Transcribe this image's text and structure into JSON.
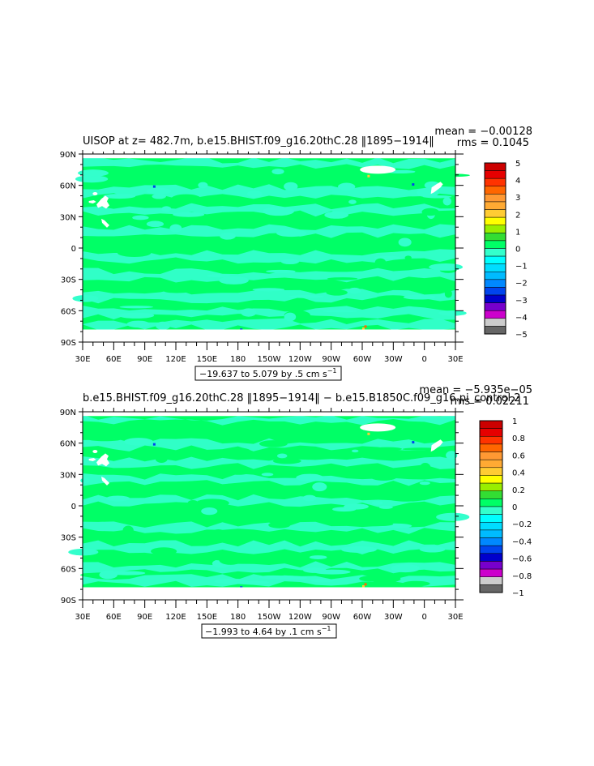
{
  "panels": [
    {
      "title": "UISOP at z= 482.7m, b.e15.BHIST.f09_g16.20thC.28 ‖1895−1914‖",
      "stats": {
        "mean": "mean = −0.00128",
        "rms": "rms = 0.1045"
      },
      "range_label": "−19.637 to 5.079 by .5 cm s",
      "range_exponent": "−1",
      "colorbar": {
        "labels": [
          "5",
          "4",
          "3",
          "2",
          "1",
          "0",
          "−1",
          "−2",
          "−3",
          "−4",
          "−5"
        ],
        "colors": [
          "#cc0000",
          "#e60000",
          "#ff3300",
          "#ff6600",
          "#ff9933",
          "#ffaa33",
          "#ffcc33",
          "#ffff00",
          "#99ee00",
          "#33dd33",
          "#00ff66",
          "#33ffcc",
          "#00ffff",
          "#00ddff",
          "#00bbff",
          "#0088ff",
          "#0044ee",
          "#0000cc",
          "#7700cc",
          "#cc00cc",
          "#cccccc",
          "#666666"
        ]
      }
    },
    {
      "title": "b.e15.BHIST.f09_g16.20thC.28 ‖1895−1914‖ − b.e15.B1850C.f09_g16.pi_control.2",
      "stats": {
        "mean": "mean = −5.935e−05",
        "rms": "rms = 0.02211"
      },
      "range_label": "−1.993 to 4.64 by .1 cm s",
      "range_exponent": "−1",
      "colorbar": {
        "labels": [
          "1",
          "0.8",
          "0.6",
          "0.4",
          "0.2",
          "0",
          "−0.2",
          "−0.4",
          "−0.6",
          "−0.8",
          "−1"
        ],
        "colors": [
          "#cc0000",
          "#e60000",
          "#ff3300",
          "#ff6600",
          "#ff9933",
          "#ffaa33",
          "#ffcc33",
          "#ffff00",
          "#99ee00",
          "#33dd33",
          "#00ff66",
          "#33ffcc",
          "#00ffff",
          "#00ddff",
          "#00bbff",
          "#0088ff",
          "#0044ee",
          "#0000cc",
          "#7700cc",
          "#cc00cc",
          "#cccccc",
          "#666666"
        ]
      }
    }
  ],
  "axes": {
    "lat_labels": [
      "90N",
      "60N",
      "30N",
      "0",
      "30S",
      "60S",
      "90S"
    ],
    "lon_labels": [
      "30E",
      "60E",
      "90E",
      "120E",
      "150E",
      "180",
      "150W",
      "120W",
      "90W",
      "60W",
      "30W",
      "0",
      "30E"
    ]
  },
  "chart_data": [
    {
      "type": "heatmap",
      "title": "UISOP at z= 482.7m, b.e15.BHIST.f09_g16.20thC.28 ‖1895−1914‖",
      "x": {
        "label": "",
        "range": [
          30,
          390
        ],
        "ticks": [
          "30E",
          "60E",
          "90E",
          "120E",
          "150E",
          "180",
          "150W",
          "120W",
          "90W",
          "60W",
          "30W",
          "0",
          "30E"
        ]
      },
      "y": {
        "label": "",
        "range": [
          -90,
          90
        ],
        "ticks": [
          "90N",
          "60N",
          "30N",
          "0",
          "30S",
          "60S",
          "90S"
        ]
      },
      "units": "cm s-1",
      "value_min": -19.637,
      "value_max": 5.079,
      "contour_interval": 0.5,
      "mean": -0.00128,
      "rms": 0.1045,
      "colorbar_range": [
        -5,
        5
      ],
      "dominant_fields": [
        {
          "value_range": [
            0,
            0.5
          ],
          "color": "#00ff66",
          "share": "most of ocean"
        },
        {
          "value_range": [
            -0.5,
            0
          ],
          "color": "#33ffcc",
          "share": "bands and patches"
        }
      ]
    },
    {
      "type": "heatmap",
      "title": "b.e15.BHIST.f09_g16.20thC.28 ‖1895−1914‖ − b.e15.B1850C.f09_g16.pi_control.2",
      "x": {
        "label": "",
        "range": [
          30,
          390
        ],
        "ticks": [
          "30E",
          "60E",
          "90E",
          "120E",
          "150E",
          "180",
          "150W",
          "120W",
          "90W",
          "60W",
          "30W",
          "0",
          "30E"
        ]
      },
      "y": {
        "label": "",
        "range": [
          -90,
          90
        ],
        "ticks": [
          "90N",
          "60N",
          "30N",
          "0",
          "30S",
          "60S",
          "90S"
        ]
      },
      "units": "cm s-1",
      "value_min": -1.993,
      "value_max": 4.64,
      "contour_interval": 0.1,
      "mean": -5.935e-05,
      "rms": 0.02211,
      "colorbar_range": [
        -1,
        1
      ],
      "dominant_fields": [
        {
          "value_range": [
            0,
            0.1
          ],
          "color": "#00ff66",
          "share": "most of ocean"
        },
        {
          "value_range": [
            -0.1,
            0
          ],
          "color": "#33ffcc",
          "share": "bands and patches"
        }
      ]
    }
  ]
}
